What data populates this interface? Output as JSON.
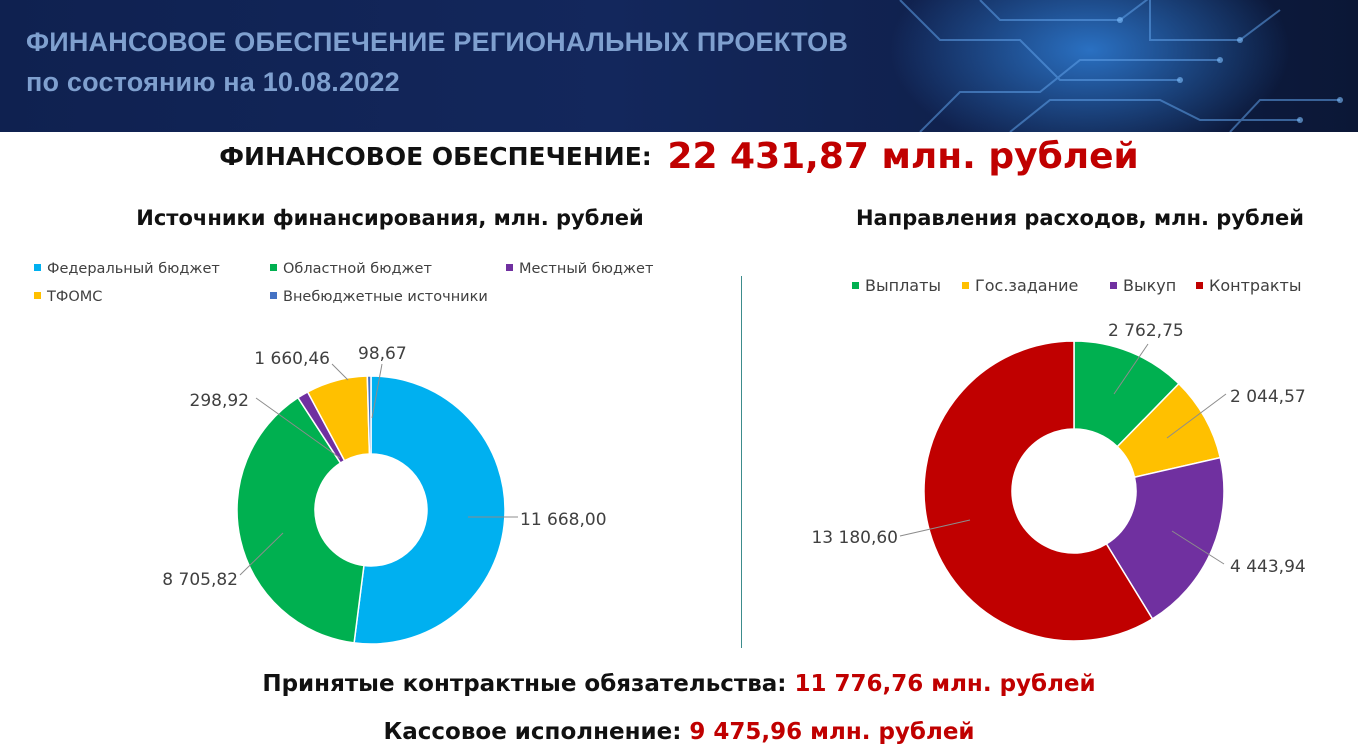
{
  "header": {
    "title_line1": "ФИНАНСОВОЕ ОБЕСПЕЧЕНИЕ РЕГИОНАЛЬНЫХ ПРОЕКТОВ",
    "title_line2": "по состоянию на 10.08.2022"
  },
  "total": {
    "label": "ФИНАНСОВОЕ ОБЕСПЕЧЕНИЕ:",
    "value": "22 431,87 млн. рублей"
  },
  "chart_data": [
    {
      "type": "donut",
      "title": "Источники финансирования, млн. рублей",
      "legend_position": "top",
      "series": [
        {
          "name": "Федеральный бюджет",
          "value": 11668.0,
          "label": "11 668,00",
          "color": "#00b0f0"
        },
        {
          "name": "Областной бюджет",
          "value": 8705.82,
          "label": "8 705,82",
          "color": "#00b050"
        },
        {
          "name": "Местный бюджет",
          "value": 298.92,
          "label": "298,92",
          "color": "#7030a0"
        },
        {
          "name": "ТФОМС",
          "value": 1660.46,
          "label": "1 660,46",
          "color": "#ffc000"
        },
        {
          "name": "Внебюджетные источники",
          "value": 98.67,
          "label": "98,67",
          "color": "#4472c4"
        }
      ]
    },
    {
      "type": "donut",
      "title": "Направления расходов, млн. рублей",
      "legend_position": "top",
      "series": [
        {
          "name": "Выплаты",
          "value": 2762.75,
          "label": "2 762,75",
          "color": "#00b050"
        },
        {
          "name": "Гос.задание",
          "value": 2044.57,
          "label": "2 044,57",
          "color": "#ffc000"
        },
        {
          "name": "Выкуп",
          "value": 4443.94,
          "label": "4 443,94",
          "color": "#7030a0"
        },
        {
          "name": "Контракты",
          "value": 13180.6,
          "label": "13 180,60",
          "color": "#c00000"
        }
      ]
    }
  ],
  "footer": {
    "contract_label": "Принятые контрактные обязательства:",
    "contract_value": "11 776,76 млн. рублей",
    "cash_label": "Кассовое исполнение:",
    "cash_value": "9 475,96 млн. рублей"
  }
}
